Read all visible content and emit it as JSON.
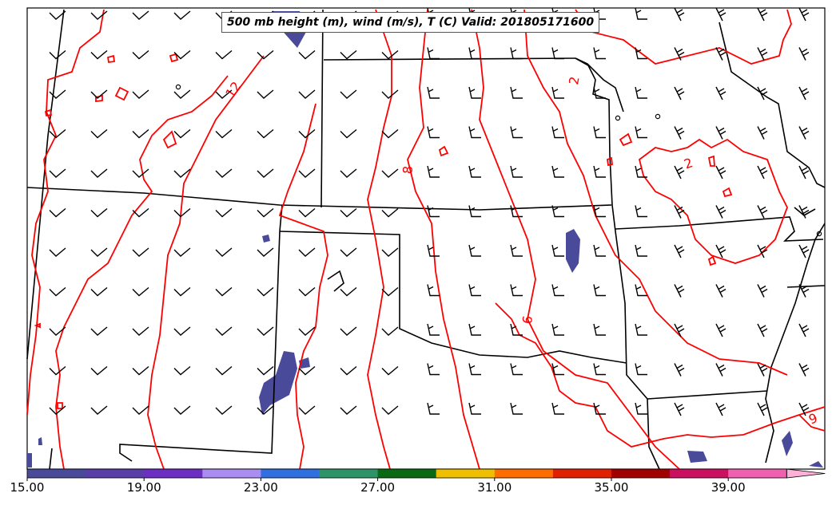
{
  "title": "500 mb height (m), wind (m/s), T (C) Valid: 201805171600",
  "colorbar": {
    "tick_labels": [
      "15.00",
      "19.00",
      "23.00",
      "27.00",
      "31.00",
      "35.00",
      "39.00"
    ],
    "colors": [
      "#4a4a9a",
      "#5a3ea8",
      "#6c2fc2",
      "#a98df0",
      "#2f6fe0",
      "#2e9468",
      "#0a6a14",
      "#f0c000",
      "#ff6d00",
      "#e02000",
      "#a00000",
      "#cc1060",
      "#f060b0",
      "#ffb0d8"
    ]
  },
  "contour_labels": [
    "12",
    "8",
    "6",
    "2",
    "2",
    "9",
    "6"
  ],
  "map_styles": {
    "temperature_contour_color": "#ff0000",
    "border_color": "#000000",
    "wind_barb_color": "#000000",
    "shading_color": "#4a4a9a"
  }
}
